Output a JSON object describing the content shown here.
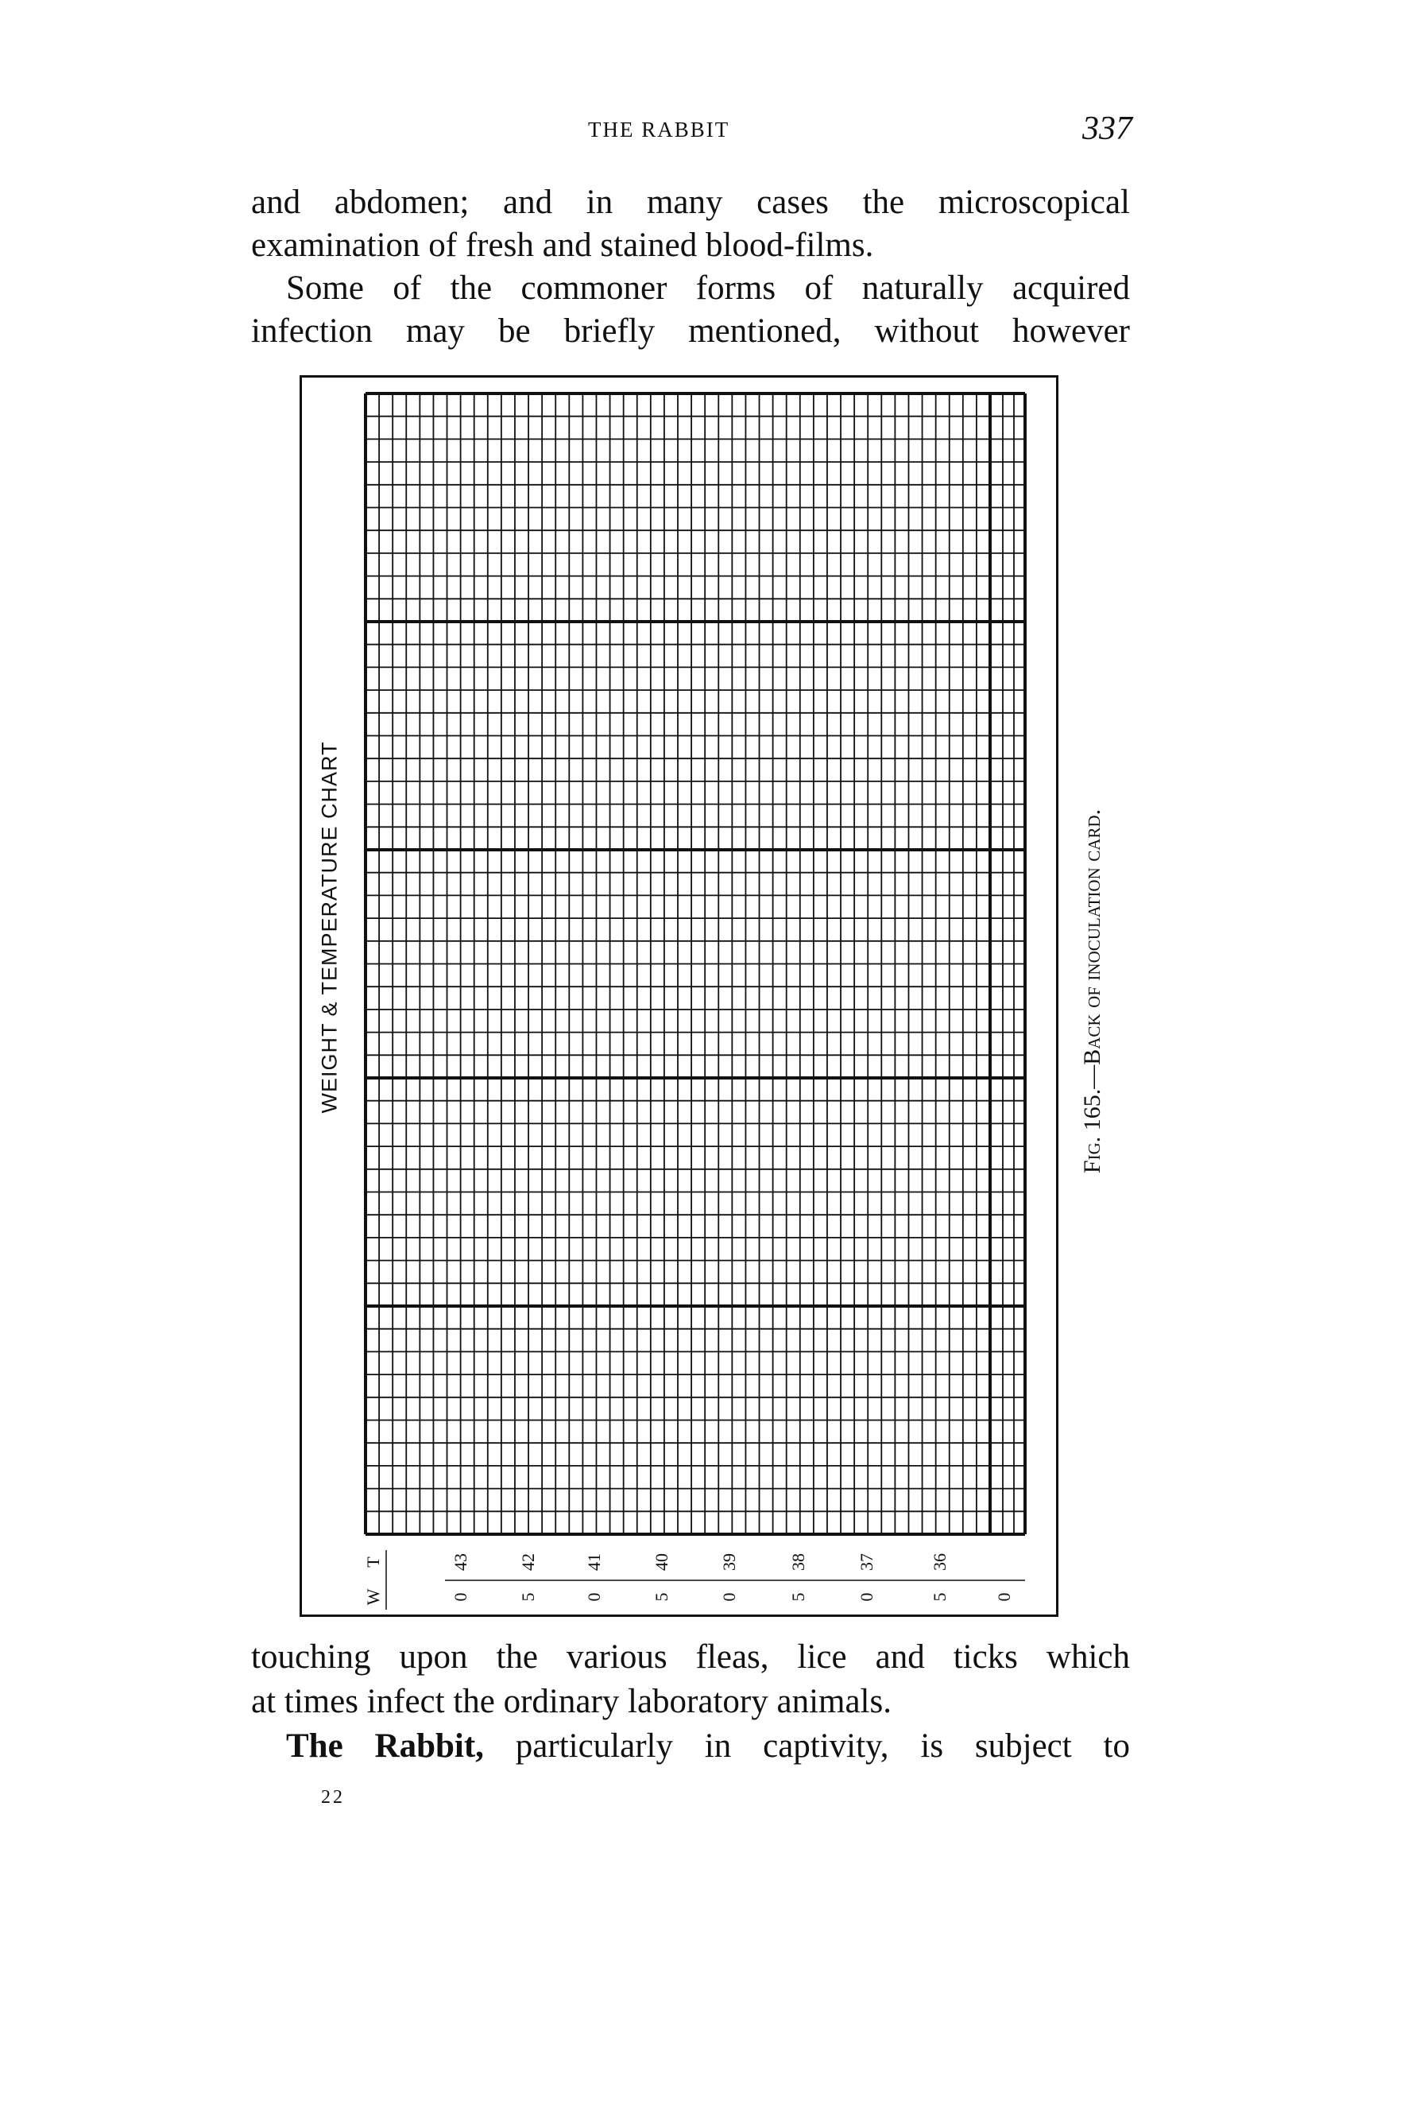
{
  "header": {
    "running_title": "THE RABBIT",
    "page_number": "337"
  },
  "body_top": [
    "and abdomen; and in many cases the microscopical",
    "examination of fresh and stained blood-films.",
    "Some of the commoner forms of naturally acquired",
    "infection may be briefly mentioned, without however"
  ],
  "figure": {
    "card_title": "WEIGHT & TEMPERATURE CHART",
    "caption": "Fig. 165.—Back of inoculation card.",
    "row_labels": {
      "temperature": "T",
      "weight": "W"
    },
    "temperature_scale": [
      "43",
      "42",
      "41",
      "40",
      "39",
      "38",
      "37",
      "36"
    ],
    "weight_scale": [
      "0",
      "5",
      "0",
      "5",
      "0",
      "5",
      "0",
      "5",
      "0"
    ]
  },
  "body_bottom": [
    "touching upon the various fleas, lice and ticks which",
    "at times infect the ordinary laboratory animals."
  ],
  "last_line": {
    "bold": "The Rabbit,",
    "rest": " particularly in captivity, is subject to"
  },
  "signature_mark": "22"
}
